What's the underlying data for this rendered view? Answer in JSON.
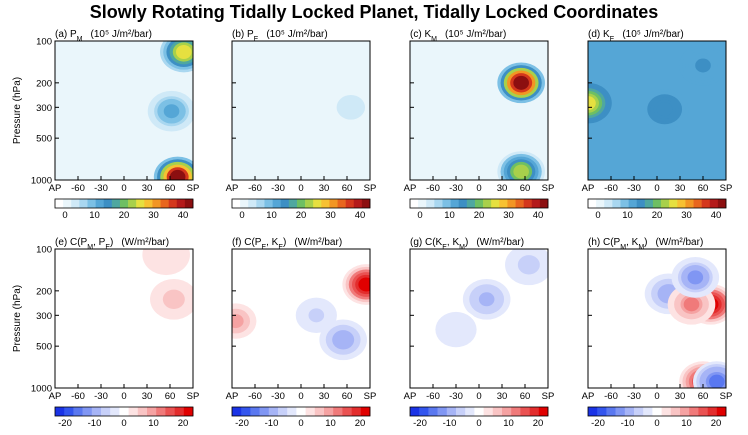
{
  "title": "Slowly Rotating Tidally Locked Planet, Tidally Locked Coordinates",
  "y_axis": {
    "label": "Pressure (hPa)",
    "scale": "log",
    "range": [
      1000,
      100
    ],
    "ticks": [
      "100",
      "200",
      "300",
      "500",
      "1000"
    ]
  },
  "x_axis": {
    "ticks": [
      "AP",
      "-60",
      "-30",
      "0",
      "30",
      "60",
      "SP"
    ]
  },
  "colorbars": {
    "energy": {
      "ticks": [
        "0",
        "10",
        "20",
        "30",
        "40"
      ],
      "range": [
        0,
        40
      ],
      "colors": [
        "#ffffff",
        "#eaf6fb",
        "#cfe9f7",
        "#a9d7f0",
        "#7cc0e5",
        "#55a6d6",
        "#3d8fc4",
        "#4fa7a0",
        "#6ebf63",
        "#a8d04b",
        "#e6e040",
        "#f7c132",
        "#f29624",
        "#e8661e",
        "#d4371c",
        "#b41a1a",
        "#8c0f10"
      ]
    },
    "conversion": {
      "ticks": [
        "-20",
        "-10",
        "0",
        "10",
        "20"
      ],
      "range": [
        -20,
        20
      ],
      "colors": [
        "#1a33e6",
        "#3355ee",
        "#5a78f0",
        "#8096f3",
        "#a6b4f6",
        "#c7d0f9",
        "#e3e8fc",
        "#ffffff",
        "#fde3e3",
        "#f9c4c4",
        "#f5a2a2",
        "#f07a7a",
        "#ea5252",
        "#e32d2d",
        "#e00000"
      ]
    }
  },
  "panels": [
    {
      "id": "a",
      "label": "(a) P",
      "sub": "M",
      "unit": "(10⁵ J/m²/bar)",
      "type": "energy"
    },
    {
      "id": "b",
      "label": "(b) P",
      "sub": "E",
      "unit": "(10⁵ J/m²/bar)",
      "type": "energy"
    },
    {
      "id": "c",
      "label": "(c) K",
      "sub": "M",
      "unit": "(10⁵ J/m²/bar)",
      "type": "energy"
    },
    {
      "id": "d",
      "label": "(d) K",
      "sub": "E",
      "unit": "(10⁵ J/m²/bar)",
      "type": "energy"
    },
    {
      "id": "e",
      "label": "(e) C(P",
      "sub": "M",
      "mid": ", P",
      "sub2": "E",
      "tail": ")",
      "unit": "(W/m²/bar)",
      "type": "conversion"
    },
    {
      "id": "f",
      "label": "(f) C(P",
      "sub": "E",
      "mid": ", K",
      "sub2": "E",
      "tail": ")",
      "unit": "(W/m²/bar)",
      "type": "conversion"
    },
    {
      "id": "g",
      "label": "(g) C(K",
      "sub": "E",
      "mid": ", K",
      "sub2": "M",
      "tail": ")",
      "unit": "(W/m²/bar)",
      "type": "conversion"
    },
    {
      "id": "h",
      "label": "(h) C(P",
      "sub": "M",
      "mid": ", K",
      "sub2": "M",
      "tail": ")",
      "unit": "(W/m²/bar)",
      "type": "conversion"
    }
  ],
  "chart_data": [
    {
      "type": "heatmap",
      "panel": "a",
      "background": 3,
      "features": [
        {
          "x": 78,
          "p": 120,
          "value": 25,
          "note": "upper jet near SP"
        },
        {
          "x": 62,
          "p": 320,
          "value": 12
        },
        {
          "x": 70,
          "p": 950,
          "value": 40,
          "note": "near-surface maximum"
        }
      ]
    },
    {
      "type": "heatmap",
      "panel": "b",
      "background": 2,
      "features": [
        {
          "x": 65,
          "p": 300,
          "value": 5
        }
      ]
    },
    {
      "type": "heatmap",
      "panel": "c",
      "background": 3,
      "features": [
        {
          "x": 55,
          "p": 200,
          "value": 42,
          "note": "upper-level maximum"
        },
        {
          "x": 55,
          "p": 870,
          "value": 22
        }
      ]
    },
    {
      "type": "heatmap",
      "panel": "d",
      "background": 12,
      "features": [
        {
          "x": -90,
          "p": 280,
          "value": 24
        },
        {
          "x": 10,
          "p": 310,
          "value": 16
        },
        {
          "x": 60,
          "p": 150,
          "value": 14
        }
      ]
    },
    {
      "type": "heatmap",
      "panel": "e",
      "background": 1,
      "features": [
        {
          "x": 55,
          "p": 110,
          "value": 4
        },
        {
          "x": 65,
          "p": 230,
          "value": 5
        }
      ]
    },
    {
      "type": "heatmap",
      "panel": "f",
      "background": 0,
      "features": [
        {
          "x": 85,
          "p": 180,
          "value": 20
        },
        {
          "x": -85,
          "p": 330,
          "value": 8
        },
        {
          "x": 20,
          "p": 300,
          "value": -5
        },
        {
          "x": 55,
          "p": 450,
          "value": -10
        }
      ]
    },
    {
      "type": "heatmap",
      "panel": "g",
      "background": -1,
      "features": [
        {
          "x": 10,
          "p": 230,
          "value": -8
        },
        {
          "x": -30,
          "p": 380,
          "value": -3
        },
        {
          "x": 65,
          "p": 130,
          "value": -5
        }
      ]
    },
    {
      "type": "heatmap",
      "panel": "h",
      "background": 0,
      "features": [
        {
          "x": 70,
          "p": 250,
          "value": 20
        },
        {
          "x": 15,
          "p": 210,
          "value": -10
        },
        {
          "x": 45,
          "p": 250,
          "value": 10
        },
        {
          "x": 50,
          "p": 160,
          "value": -12
        },
        {
          "x": 60,
          "p": 900,
          "value": 18
        },
        {
          "x": 78,
          "p": 900,
          "value": -15
        }
      ]
    }
  ]
}
